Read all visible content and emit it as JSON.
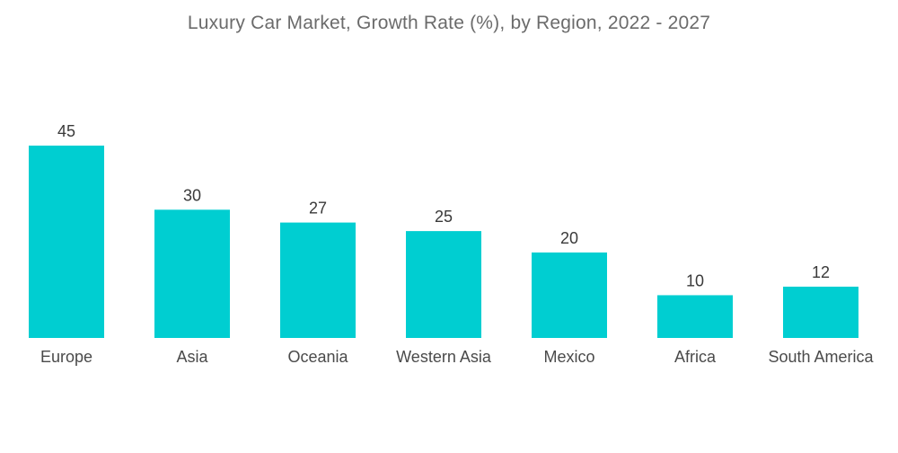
{
  "chart_data": {
    "type": "bar",
    "title": "Luxury Car Market, Growth Rate (%), by Region, 2022 - 2027",
    "categories": [
      "Europe",
      "Asia",
      "Oceania",
      "Western Asia",
      "Mexico",
      "Africa",
      "South America"
    ],
    "values": [
      45,
      30,
      27,
      25,
      20,
      10,
      12
    ],
    "xlabel": "",
    "ylabel": "",
    "ylim": [
      0,
      45
    ],
    "grid": false,
    "legend": "none",
    "bar_color": "#00CED1"
  }
}
